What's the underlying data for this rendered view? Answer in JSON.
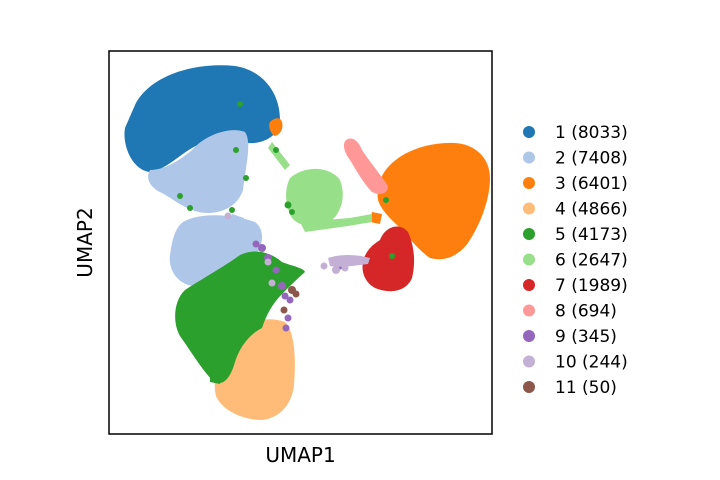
{
  "chart_data": {
    "type": "scatter",
    "title": "",
    "xlabel": "UMAP1",
    "ylabel": "UMAP2",
    "grid": false,
    "xticks": false,
    "yticks": false,
    "legend_position": "right",
    "series": [
      {
        "name": "1 (8033)",
        "color": "#1f77b4"
      },
      {
        "name": "2 (7408)",
        "color": "#aec7e8"
      },
      {
        "name": "3 (6401)",
        "color": "#ff7f0e"
      },
      {
        "name": "4 (4866)",
        "color": "#ffbb78"
      },
      {
        "name": "5 (4173)",
        "color": "#2ca02c"
      },
      {
        "name": "6 (2647)",
        "color": "#98df8a"
      },
      {
        "name": "7 (1989)",
        "color": "#d62728"
      },
      {
        "name": "8 (694)",
        "color": "#ff9896"
      },
      {
        "name": "9 (345)",
        "color": "#9467bd"
      },
      {
        "name": "10 (244)",
        "color": "#c5b0d5"
      },
      {
        "name": "11 (50)",
        "color": "#8c564b"
      }
    ]
  }
}
